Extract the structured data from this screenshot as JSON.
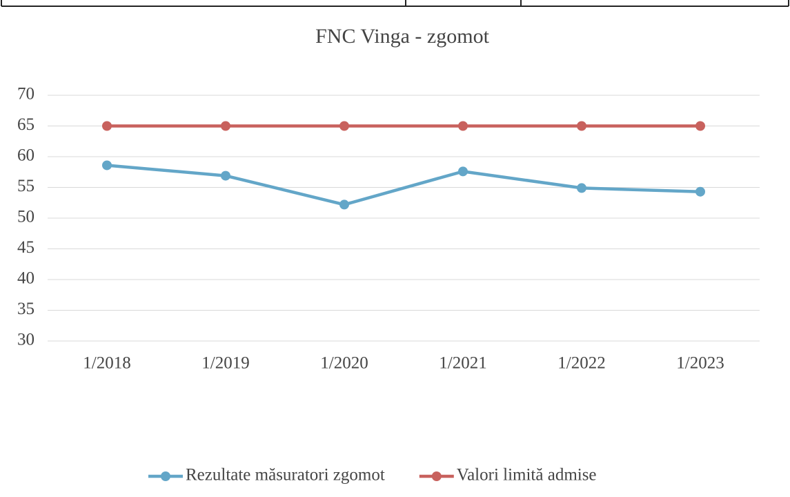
{
  "chart_data": {
    "type": "line",
    "title": "FNC Vinga - zgomot",
    "categories": [
      "1/2018",
      "1/2019",
      "1/2020",
      "1/2021",
      "1/2022",
      "1/2023"
    ],
    "series": [
      {
        "name": "Rezultate măsuratori zgomot",
        "color": "#63a6c8",
        "values": [
          58.6,
          56.9,
          52.2,
          57.6,
          54.9,
          54.3
        ]
      },
      {
        "name": "Valori limită admise",
        "color": "#c8615d",
        "values": [
          65,
          65,
          65,
          65,
          65,
          65
        ]
      }
    ],
    "ylim": [
      30,
      70
    ],
    "yticks": [
      30,
      35,
      40,
      45,
      50,
      55,
      60,
      65,
      70
    ],
    "grid": true,
    "legend": "bottom"
  }
}
